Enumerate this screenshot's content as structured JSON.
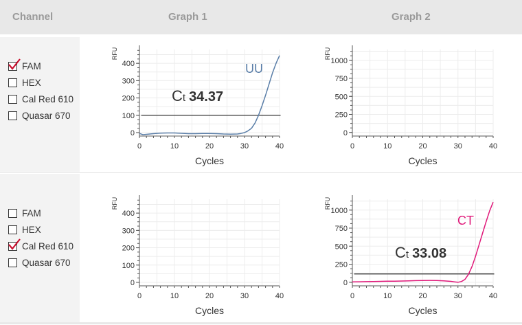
{
  "header": {
    "channel_label": "Channel",
    "graph1_label": "Graph 1",
    "graph2_label": "Graph 2"
  },
  "rows": [
    {
      "channels": [
        {
          "label": "FAM",
          "checked": true
        },
        {
          "label": "HEX",
          "checked": false
        },
        {
          "label": "Cal Red 610",
          "checked": false
        },
        {
          "label": "Quasar 670",
          "checked": false
        }
      ]
    },
    {
      "channels": [
        {
          "label": "FAM",
          "checked": false
        },
        {
          "label": "HEX",
          "checked": false
        },
        {
          "label": "Cal Red 610",
          "checked": true
        },
        {
          "label": "Quasar 670",
          "checked": false
        }
      ]
    }
  ],
  "colors": {
    "uu_curve": "#5a7ea8",
    "ct_curve": "#e0197a",
    "check_mark": "#c8102e",
    "threshold": "#333333",
    "grid": "#ececec"
  },
  "chart_data": [
    {
      "type": "line",
      "position": "row1-graph1",
      "xlabel": "Cycles",
      "ylabel": "RFU",
      "xlim": [
        0,
        40
      ],
      "ylim": [
        -20,
        480
      ],
      "xticks": [
        0,
        10,
        20,
        30,
        40
      ],
      "yticks": [
        0,
        100,
        200,
        300,
        400
      ],
      "threshold": 100,
      "ct_prefix": "C",
      "ct_sub": "t",
      "ct_value": "34.37",
      "series": [
        {
          "name": "UU",
          "x": [
            0,
            1,
            2,
            4,
            6,
            8,
            10,
            12,
            14,
            16,
            18,
            20,
            22,
            24,
            26,
            28,
            29,
            30,
            31,
            32,
            33,
            34,
            35,
            36,
            37,
            38,
            39,
            40
          ],
          "values": [
            -5,
            -12,
            -10,
            -6,
            -3,
            -2,
            -2,
            -4,
            -6,
            -6,
            -5,
            -5,
            -6,
            -8,
            -9,
            -8,
            -5,
            0,
            10,
            25,
            55,
            100,
            155,
            215,
            280,
            345,
            400,
            445
          ]
        }
      ]
    },
    {
      "type": "line",
      "position": "row1-graph2",
      "xlabel": "Cycles",
      "ylabel": "RFU",
      "xlim": [
        0,
        40
      ],
      "ylim": [
        -50,
        1150
      ],
      "xticks": [
        0,
        10,
        20,
        30,
        40
      ],
      "yticks": [
        0,
        250,
        500,
        750,
        1000
      ],
      "threshold": null,
      "series": []
    },
    {
      "type": "line",
      "position": "row2-graph1",
      "xlabel": "Cycles",
      "ylabel": "RFU",
      "xlim": [
        0,
        40
      ],
      "ylim": [
        -20,
        480
      ],
      "xticks": [
        0,
        10,
        20,
        30,
        40
      ],
      "yticks": [
        0,
        100,
        200,
        300,
        400
      ],
      "threshold": null,
      "series": []
    },
    {
      "type": "line",
      "position": "row2-graph2",
      "xlabel": "Cycles",
      "ylabel": "RFU",
      "xlim": [
        0,
        40
      ],
      "ylim": [
        -50,
        1150
      ],
      "xticks": [
        0,
        10,
        20,
        30,
        40
      ],
      "yticks": [
        0,
        250,
        500,
        750,
        1000
      ],
      "threshold": 115,
      "ct_prefix": "C",
      "ct_sub": "t",
      "ct_value": "33.08",
      "series": [
        {
          "name": "CT",
          "x": [
            0,
            2,
            4,
            6,
            8,
            10,
            12,
            14,
            16,
            18,
            20,
            22,
            24,
            26,
            28,
            29,
            30,
            31,
            32,
            33,
            34,
            35,
            36,
            37,
            38,
            39,
            40
          ],
          "values": [
            5,
            6,
            8,
            10,
            12,
            14,
            15,
            17,
            20,
            22,
            24,
            25,
            24,
            20,
            12,
            5,
            0,
            10,
            40,
            110,
            220,
            360,
            520,
            680,
            840,
            990,
            1110
          ]
        }
      ]
    }
  ]
}
